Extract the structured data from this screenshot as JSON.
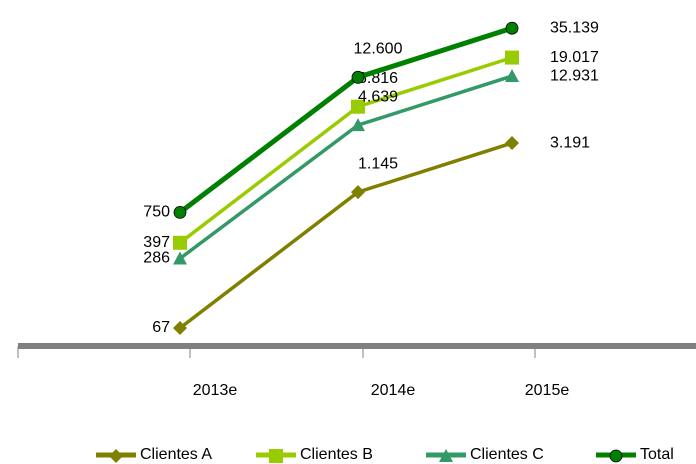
{
  "chart_data": {
    "type": "line",
    "categories": [
      "2013e",
      "2014e",
      "2015e"
    ],
    "series": [
      {
        "name": "Clientes A",
        "color": "#808000",
        "marker": "diamond",
        "values": [
          67,
          1145,
          3191
        ],
        "value_labels": [
          "67",
          "1.145",
          "3.191"
        ]
      },
      {
        "name": "Clientes B",
        "color": "#99cc00",
        "marker": "square",
        "values": [
          397,
          6816,
          19017
        ],
        "value_labels": [
          "397",
          "6.816",
          "19.017"
        ]
      },
      {
        "name": "Clientes C",
        "color": "#339966",
        "marker": "triangle",
        "values": [
          286,
          4639,
          12931
        ],
        "value_labels": [
          "286",
          "4.639",
          "12.931"
        ]
      },
      {
        "name": "Total",
        "color": "#008000",
        "marker": "circle",
        "values": [
          750,
          12600,
          35139
        ],
        "value_labels": [
          "750",
          "12.600",
          "35.139"
        ]
      }
    ],
    "ylim": [
      50,
      40000
    ],
    "log_scale": true,
    "legend": "bottom"
  }
}
